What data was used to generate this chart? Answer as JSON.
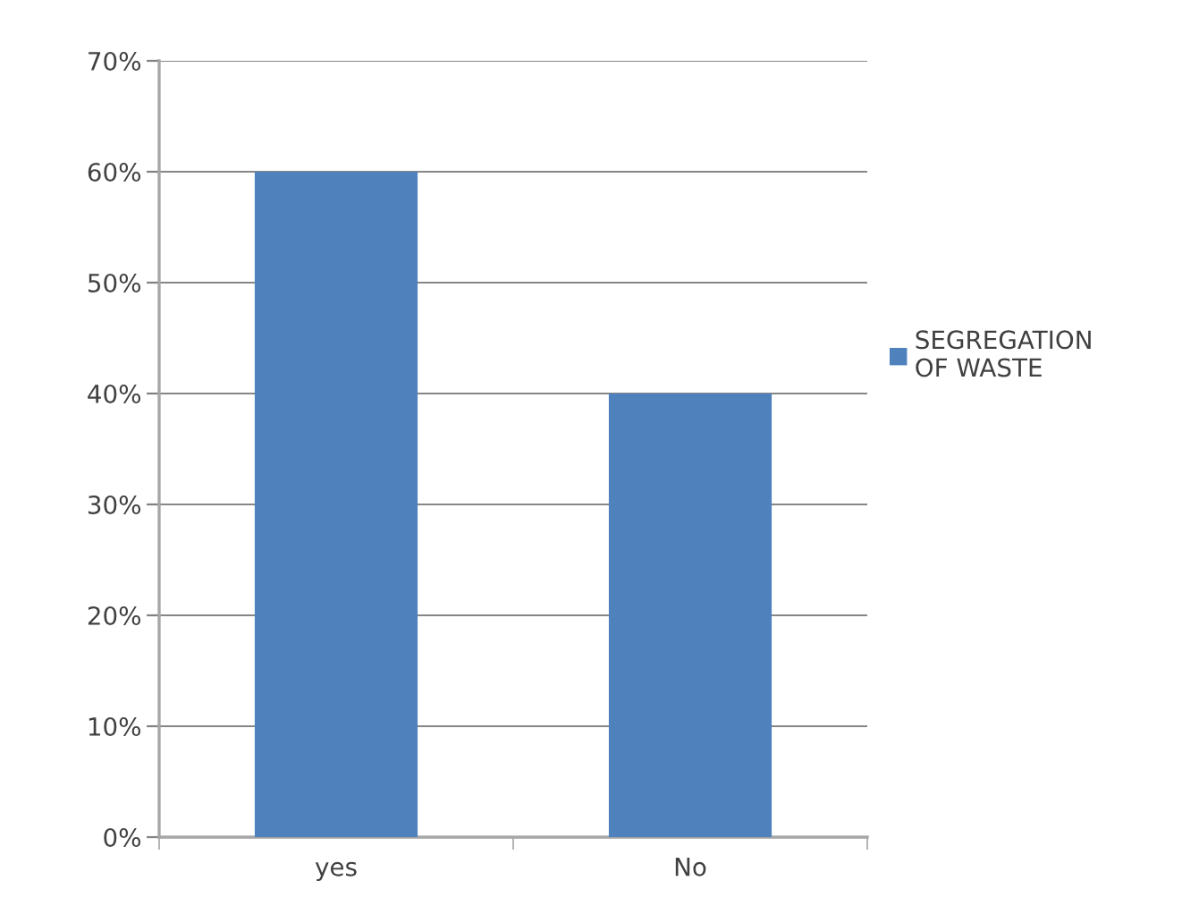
{
  "chart_data": {
    "type": "bar",
    "categories": [
      "yes",
      "No"
    ],
    "series": [
      {
        "name": "SEGREGATION OF WASTE",
        "color": "#4f81bd",
        "values": [
          60,
          40
        ]
      }
    ],
    "ylim": [
      0,
      70
    ],
    "yticks": [
      {
        "value": 0,
        "label": "0%"
      },
      {
        "value": 10,
        "label": "10%"
      },
      {
        "value": 20,
        "label": "20%"
      },
      {
        "value": 30,
        "label": "30%"
      },
      {
        "value": 40,
        "label": "40%"
      },
      {
        "value": 50,
        "label": "50%"
      },
      {
        "value": 60,
        "label": "60%"
      },
      {
        "value": 70,
        "label": "70%"
      }
    ],
    "grid": "y",
    "legend": "right"
  }
}
